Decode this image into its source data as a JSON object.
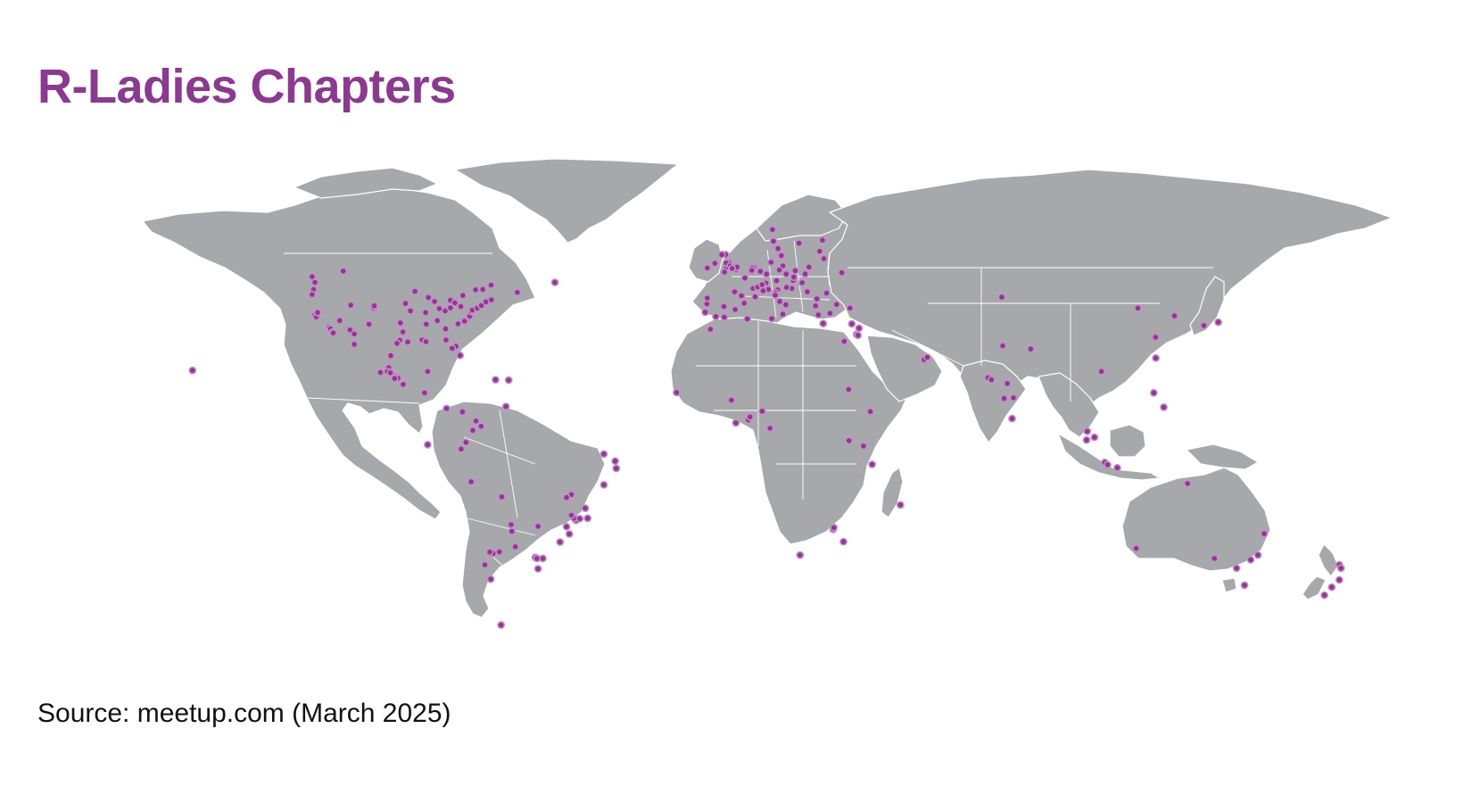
{
  "title": "R-Ladies Chapters",
  "source": "Source: meetup.com (March 2025)",
  "colors": {
    "title": "#8a3a8f",
    "land": "#a7a8ab",
    "border": "#ffffff",
    "dot_fill": "#8c3a8e",
    "dot_stroke": "#c68fc9",
    "background": "#ffffff"
  },
  "projection": "equirectangular",
  "chapters": [
    [
      47.6,
      -122.3
    ],
    [
      45.5,
      -122.7
    ],
    [
      49.3,
      -123.1
    ],
    [
      44.0,
      -123.1
    ],
    [
      51.0,
      -114.1
    ],
    [
      37.8,
      -122.4
    ],
    [
      37.3,
      -121.9
    ],
    [
      38.6,
      -121.5
    ],
    [
      34.1,
      -118.2
    ],
    [
      33.7,
      -117.8
    ],
    [
      32.7,
      -117.2
    ],
    [
      36.2,
      -115.1
    ],
    [
      33.4,
      -112.1
    ],
    [
      32.2,
      -110.9
    ],
    [
      40.8,
      -111.9
    ],
    [
      39.7,
      -105.0
    ],
    [
      40.0,
      -105.3
    ],
    [
      40.6,
      -105.1
    ],
    [
      35.1,
      -106.6
    ],
    [
      30.3,
      -97.7
    ],
    [
      29.8,
      -95.4
    ],
    [
      32.8,
      -96.8
    ],
    [
      29.4,
      -98.5
    ],
    [
      35.5,
      -97.5
    ],
    [
      41.3,
      -96.0
    ],
    [
      39.1,
      -94.6
    ],
    [
      38.6,
      -90.2
    ],
    [
      44.9,
      -93.3
    ],
    [
      43.1,
      -89.4
    ],
    [
      41.9,
      -87.6
    ],
    [
      42.3,
      -83.0
    ],
    [
      39.8,
      -86.2
    ],
    [
      39.1,
      -84.5
    ],
    [
      40.0,
      -83.0
    ],
    [
      41.5,
      -81.7
    ],
    [
      40.4,
      -80.0
    ],
    [
      36.2,
      -86.8
    ],
    [
      35.1,
      -90.0
    ],
    [
      33.7,
      -84.4
    ],
    [
      35.2,
      -80.8
    ],
    [
      35.8,
      -78.6
    ],
    [
      36.0,
      -78.9
    ],
    [
      37.5,
      -77.4
    ],
    [
      38.9,
      -77.0
    ],
    [
      39.3,
      -76.6
    ],
    [
      39.9,
      -75.2
    ],
    [
      40.7,
      -74.0
    ],
    [
      41.8,
      -72.7
    ],
    [
      42.4,
      -71.1
    ],
    [
      43.7,
      -79.4
    ],
    [
      45.4,
      -75.7
    ],
    [
      45.5,
      -73.6
    ],
    [
      46.8,
      -71.2
    ],
    [
      44.6,
      -63.6
    ],
    [
      47.6,
      -52.7
    ],
    [
      30.4,
      -91.2
    ],
    [
      29.9,
      -90.1
    ],
    [
      30.4,
      -84.3
    ],
    [
      28.5,
      -81.4
    ],
    [
      27.9,
      -82.5
    ],
    [
      25.8,
      -80.2
    ],
    [
      21.3,
      -157.8
    ],
    [
      32.5,
      -117.0
    ],
    [
      29.1,
      -110.9
    ],
    [
      25.7,
      -100.3
    ],
    [
      22.1,
      -100.9
    ],
    [
      20.7,
      -103.3
    ],
    [
      21.0,
      -101.3
    ],
    [
      19.4,
      -99.1
    ],
    [
      19.0,
      -98.2
    ],
    [
      18.9,
      -99.2
    ],
    [
      20.6,
      -100.4
    ],
    [
      17.1,
      -96.7
    ],
    [
      21.0,
      -89.6
    ],
    [
      14.6,
      -90.5
    ],
    [
      9.9,
      -84.1
    ],
    [
      8.9,
      -79.5
    ],
    [
      4.6,
      -74.1
    ],
    [
      6.2,
      -75.6
    ],
    [
      3.4,
      -76.5
    ],
    [
      10.5,
      -66.9
    ],
    [
      18.5,
      -69.9
    ],
    [
      18.4,
      -66.1
    ],
    [
      -0.2,
      -78.5
    ],
    [
      -2.2,
      -79.9
    ],
    [
      -12.0,
      -77.0
    ],
    [
      -16.5,
      -68.1
    ],
    [
      -0.9,
      -89.6
    ],
    [
      -15.8,
      -47.9
    ],
    [
      -19.9,
      -43.9
    ],
    [
      -23.5,
      -46.6
    ],
    [
      -22.9,
      -43.2
    ],
    [
      -22.9,
      -47.1
    ],
    [
      -22.0,
      -47.9
    ],
    [
      -23.0,
      -45.5
    ],
    [
      -25.4,
      -49.3
    ],
    [
      -27.6,
      -48.5
    ],
    [
      -30.0,
      -51.2
    ],
    [
      -8.0,
      -34.9
    ],
    [
      -5.8,
      -35.2
    ],
    [
      -12.9,
      -38.5
    ],
    [
      -3.7,
      -38.5
    ],
    [
      -16.7,
      -49.3
    ],
    [
      -33.4,
      -70.6
    ],
    [
      -33.0,
      -71.6
    ],
    [
      -36.8,
      -73.0
    ],
    [
      -34.6,
      -58.4
    ],
    [
      -31.4,
      -64.2
    ],
    [
      -32.9,
      -68.8
    ],
    [
      -24.8,
      -65.4
    ],
    [
      -26.8,
      -65.2
    ],
    [
      -34.9,
      -57.9
    ],
    [
      -34.9,
      -56.2
    ],
    [
      -38.0,
      -57.6
    ],
    [
      -54.8,
      -68.3
    ],
    [
      -25.3,
      -57.6
    ],
    [
      -41.1,
      -71.3
    ],
    [
      51.5,
      -0.1
    ],
    [
      53.5,
      -2.2
    ],
    [
      53.4,
      -3.0
    ],
    [
      52.5,
      -1.9
    ],
    [
      55.9,
      -3.2
    ],
    [
      55.9,
      -4.3
    ],
    [
      53.3,
      -6.3
    ],
    [
      51.9,
      -8.5
    ],
    [
      52.2,
      0.1
    ],
    [
      51.8,
      -1.3
    ],
    [
      51.5,
      -3.2
    ],
    [
      50.7,
      -3.5
    ],
    [
      48.9,
      2.4
    ],
    [
      45.8,
      4.8
    ],
    [
      43.6,
      1.4
    ],
    [
      44.8,
      -0.6
    ],
    [
      43.3,
      5.4
    ],
    [
      52.4,
      4.9
    ],
    [
      52.1,
      5.1
    ],
    [
      51.9,
      4.5
    ],
    [
      50.8,
      4.4
    ],
    [
      51.2,
      4.4
    ],
    [
      52.5,
      13.4
    ],
    [
      48.1,
      11.6
    ],
    [
      50.1,
      8.7
    ],
    [
      53.6,
      10.0
    ],
    [
      50.9,
      6.9
    ],
    [
      51.3,
      12.4
    ],
    [
      47.4,
      8.5
    ],
    [
      46.2,
      6.1
    ],
    [
      46.9,
      7.4
    ],
    [
      48.2,
      16.4
    ],
    [
      45.5,
      9.2
    ],
    [
      45.1,
      7.7
    ],
    [
      45.4,
      11.9
    ],
    [
      44.5,
      11.3
    ],
    [
      43.8,
      11.2
    ],
    [
      41.9,
      12.5
    ],
    [
      40.9,
      14.3
    ],
    [
      38.1,
      13.4
    ],
    [
      40.4,
      -3.7
    ],
    [
      41.4,
      2.2
    ],
    [
      39.5,
      -0.4
    ],
    [
      37.4,
      -6.0
    ],
    [
      38.7,
      -9.1
    ],
    [
      41.2,
      -8.6
    ],
    [
      42.9,
      -8.5
    ],
    [
      37.2,
      -3.6
    ],
    [
      59.9,
      10.7
    ],
    [
      59.3,
      18.1
    ],
    [
      55.7,
      12.6
    ],
    [
      57.7,
      12.0
    ],
    [
      55.6,
      13.0
    ],
    [
      60.2,
      24.9
    ],
    [
      63.4,
      10.4
    ],
    [
      52.2,
      21.0
    ],
    [
      50.1,
      19.9
    ],
    [
      51.1,
      17.0
    ],
    [
      50.1,
      14.4
    ],
    [
      49.2,
      16.6
    ],
    [
      47.5,
      19.0
    ],
    [
      44.4,
      26.1
    ],
    [
      42.7,
      23.3
    ],
    [
      44.8,
      20.5
    ],
    [
      45.8,
      16.0
    ],
    [
      46.1,
      14.5
    ],
    [
      50.5,
      30.5
    ],
    [
      54.7,
      25.3
    ],
    [
      56.9,
      24.1
    ],
    [
      41.0,
      29.0
    ],
    [
      39.9,
      32.9
    ],
    [
      38.4,
      27.1
    ],
    [
      37.9,
      23.7
    ],
    [
      40.6,
      22.9
    ],
    [
      35.3,
      25.1
    ],
    [
      35.2,
      33.4
    ],
    [
      32.1,
      34.8
    ],
    [
      31.8,
      35.2
    ],
    [
      33.9,
      35.5
    ],
    [
      30.0,
      31.2
    ],
    [
      24.5,
      54.4
    ],
    [
      25.2,
      55.3
    ],
    [
      27.7,
      85.3
    ],
    [
      28.6,
      77.2
    ],
    [
      19.1,
      72.9
    ],
    [
      18.5,
      73.9
    ],
    [
      12.9,
      77.6
    ],
    [
      13.1,
      80.3
    ],
    [
      17.4,
      78.5
    ],
    [
      6.9,
      79.9
    ],
    [
      43.2,
      76.9
    ],
    [
      3.1,
      101.7
    ],
    [
      1.3,
      103.8
    ],
    [
      0.5,
      101.5
    ],
    [
      21.0,
      105.8
    ],
    [
      -6.2,
      106.8
    ],
    [
      -6.9,
      107.6
    ],
    [
      -7.8,
      110.4
    ],
    [
      14.6,
      121.0
    ],
    [
      10.3,
      123.9
    ],
    [
      39.9,
      116.4
    ],
    [
      25.0,
      121.6
    ],
    [
      31.2,
      121.5
    ],
    [
      35.7,
      139.7
    ],
    [
      34.7,
      135.5
    ],
    [
      37.6,
      127.0
    ],
    [
      -12.5,
      130.8
    ],
    [
      -33.9,
      151.2
    ],
    [
      -37.8,
      145.0
    ],
    [
      -35.3,
      149.1
    ],
    [
      -27.5,
      153.0
    ],
    [
      -31.9,
      115.9
    ],
    [
      -34.9,
      138.6
    ],
    [
      -42.9,
      147.3
    ],
    [
      -36.8,
      174.8
    ],
    [
      -41.3,
      174.8
    ],
    [
      -43.5,
      172.6
    ],
    [
      -45.9,
      170.5
    ],
    [
      -37.8,
      175.3
    ],
    [
      -33.9,
      18.4
    ],
    [
      -26.2,
      28.0
    ],
    [
      -25.7,
      28.2
    ],
    [
      -29.9,
      31.0
    ],
    [
      6.5,
      3.4
    ],
    [
      7.4,
      3.9
    ],
    [
      5.6,
      -0.2
    ],
    [
      12.4,
      -1.5
    ],
    [
      14.7,
      -17.4
    ],
    [
      9.1,
      7.4
    ],
    [
      4.0,
      9.7
    ],
    [
      0.3,
      32.6
    ],
    [
      -1.3,
      36.8
    ],
    [
      -6.8,
      39.3
    ],
    [
      9.0,
      38.8
    ],
    [
      15.6,
      32.5
    ],
    [
      33.6,
      -7.6
    ],
    [
      36.8,
      10.2
    ],
    [
      36.7,
      3.1
    ],
    [
      -18.9,
      47.5
    ]
  ]
}
